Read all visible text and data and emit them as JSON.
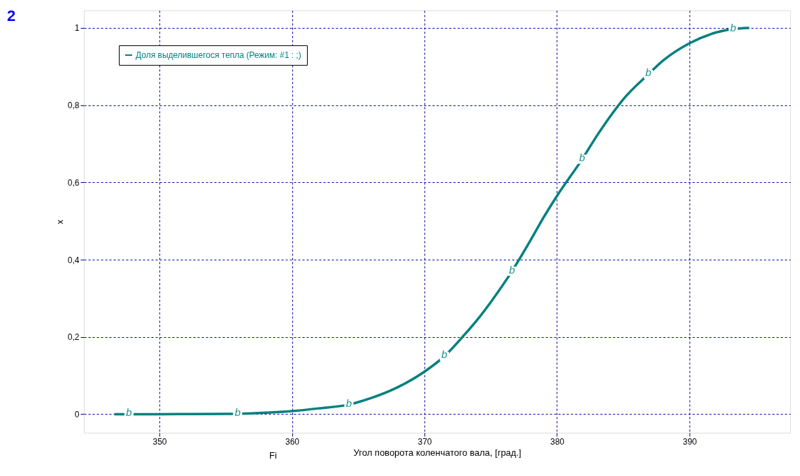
{
  "chart_data": {
    "type": "line",
    "xlabel": "Угол поворота коленчатого вала, [град.]",
    "ylabel": "x",
    "annotations": [
      "2",
      "Fi",
      {
        "text": "b",
        "x": 347.7,
        "y": 0
      },
      {
        "text": "b",
        "x": 355.9,
        "y": 0.001
      },
      {
        "text": "b",
        "x": 364.3,
        "y": 0.025
      },
      {
        "text": "b",
        "x": 371.5,
        "y": 0.15
      },
      {
        "text": "b",
        "x": 376.6,
        "y": 0.37
      },
      {
        "text": "b",
        "x": 381.9,
        "y": 0.66
      },
      {
        "text": "b",
        "x": 386.9,
        "y": 0.88
      },
      {
        "text": "b",
        "x": 393.3,
        "y": 0.997
      }
    ],
    "series": [
      {
        "name": "Доля выделившегося тепла (Режим: #1 : ;)",
        "color": "#008080",
        "x": [
          346.6,
          347.7,
          350,
          355,
          355.9,
          358,
          360,
          362,
          364.3,
          366,
          368,
          370,
          371.5,
          373,
          374,
          375,
          376.6,
          378,
          379,
          380,
          381.9,
          383,
          384,
          385,
          386.9,
          388,
          390,
          392,
          393.3,
          394.5
        ],
        "values": [
          0,
          0,
          0,
          0.001,
          0.001,
          0.004,
          0.008,
          0.015,
          0.025,
          0.042,
          0.07,
          0.11,
          0.15,
          0.205,
          0.245,
          0.29,
          0.37,
          0.45,
          0.51,
          0.565,
          0.66,
          0.72,
          0.77,
          0.815,
          0.88,
          0.915,
          0.96,
          0.988,
          0.997,
          1.0
        ]
      }
    ],
    "xlim": [
      344.3,
      397.6
    ],
    "ylim": [
      -0.048,
      1.045
    ],
    "xticks": [
      350,
      360,
      370,
      380,
      390
    ],
    "yticks": [
      0,
      {
        "value": 0.2,
        "label": "0,2"
      },
      {
        "value": 0.4,
        "label": "0,4"
      },
      {
        "value": 0.6,
        "label": "0,6"
      },
      {
        "value": 0.8,
        "label": "0,8"
      },
      1
    ],
    "grid": true,
    "legend": "top left",
    "marker": "none",
    "line_style": "solid"
  }
}
